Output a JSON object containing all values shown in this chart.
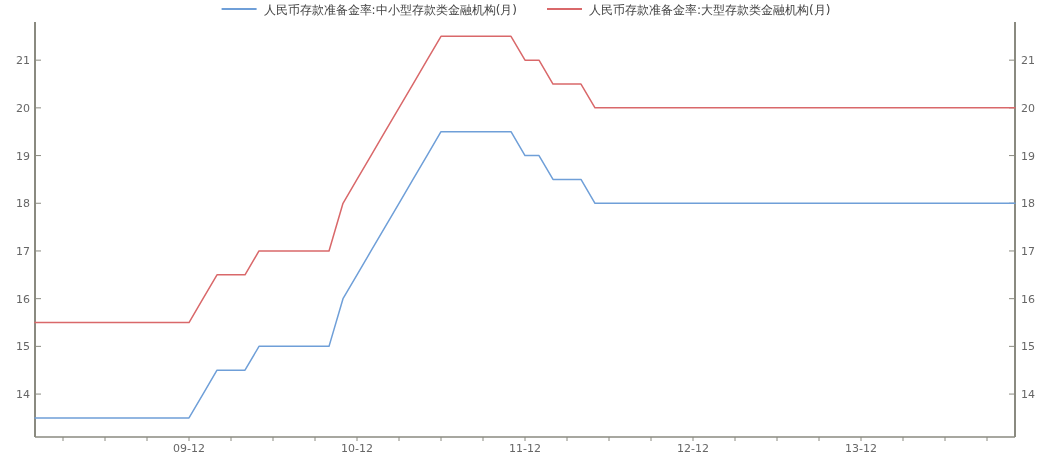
{
  "chart_data": {
    "type": "line",
    "x": [
      "2009-01",
      "2009-02",
      "2009-03",
      "2009-04",
      "2009-05",
      "2009-06",
      "2009-07",
      "2009-08",
      "2009-09",
      "2009-10",
      "2009-11",
      "2009-12",
      "2010-01",
      "2010-02",
      "2010-03",
      "2010-04",
      "2010-05",
      "2010-06",
      "2010-07",
      "2010-08",
      "2010-09",
      "2010-10",
      "2010-11",
      "2010-12",
      "2011-01",
      "2011-02",
      "2011-03",
      "2011-04",
      "2011-05",
      "2011-06",
      "2011-07",
      "2011-08",
      "2011-09",
      "2011-10",
      "2011-11",
      "2011-12",
      "2012-01",
      "2012-02",
      "2012-03",
      "2012-04",
      "2012-05",
      "2012-06",
      "2012-07",
      "2012-08",
      "2012-09",
      "2012-10",
      "2012-11",
      "2012-12",
      "2013-01",
      "2013-02",
      "2013-03",
      "2013-04",
      "2013-05",
      "2013-06",
      "2013-07",
      "2013-08",
      "2013-09",
      "2013-10",
      "2013-11",
      "2013-12",
      "2014-01",
      "2014-02",
      "2014-03",
      "2014-04",
      "2014-05",
      "2014-06",
      "2014-07",
      "2014-08",
      "2014-09",
      "2014-10",
      "2014-11"
    ],
    "series": [
      {
        "name": "人民币存款准备金率:中小型存款类金融机构(月)",
        "color": "#6f9fd8",
        "values": [
          13.5,
          13.5,
          13.5,
          13.5,
          13.5,
          13.5,
          13.5,
          13.5,
          13.5,
          13.5,
          13.5,
          13.5,
          14,
          14.5,
          14.5,
          14.5,
          15,
          15,
          15,
          15,
          15,
          15,
          16,
          16.5,
          17,
          17.5,
          18,
          18.5,
          19,
          19.5,
          19.5,
          19.5,
          19.5,
          19.5,
          19.5,
          19,
          19,
          18.5,
          18.5,
          18.5,
          18,
          18,
          18,
          18,
          18,
          18,
          18,
          18,
          18,
          18,
          18,
          18,
          18,
          18,
          18,
          18,
          18,
          18,
          18,
          18,
          18,
          18,
          18,
          18,
          18,
          18,
          18,
          18,
          18,
          18,
          18
        ]
      },
      {
        "name": "人民币存款准备金率:大型存款类金融机构(月)",
        "color": "#d9686a",
        "values": [
          15.5,
          15.5,
          15.5,
          15.5,
          15.5,
          15.5,
          15.5,
          15.5,
          15.5,
          15.5,
          15.5,
          15.5,
          16,
          16.5,
          16.5,
          16.5,
          17,
          17,
          17,
          17,
          17,
          17,
          18,
          18.5,
          19,
          19.5,
          20,
          20.5,
          21,
          21.5,
          21.5,
          21.5,
          21.5,
          21.5,
          21.5,
          21,
          21,
          20.5,
          20.5,
          20.5,
          20,
          20,
          20,
          20,
          20,
          20,
          20,
          20,
          20,
          20,
          20,
          20,
          20,
          20,
          20,
          20,
          20,
          20,
          20,
          20,
          20,
          20,
          20,
          20,
          20,
          20,
          20,
          20,
          20,
          20,
          20
        ]
      }
    ],
    "xlim": [
      "2009-01",
      "2014-11"
    ],
    "xticks": [
      {
        "value": "2009-03",
        "label": null
      },
      {
        "value": "2009-06",
        "label": null
      },
      {
        "value": "2009-09",
        "label": null
      },
      {
        "value": "2009-12",
        "label": "09-12"
      },
      {
        "value": "2010-03",
        "label": null
      },
      {
        "value": "2010-06",
        "label": null
      },
      {
        "value": "2010-09",
        "label": null
      },
      {
        "value": "2010-12",
        "label": "10-12"
      },
      {
        "value": "2011-03",
        "label": null
      },
      {
        "value": "2011-06",
        "label": null
      },
      {
        "value": "2011-09",
        "label": null
      },
      {
        "value": "2011-12",
        "label": "11-12"
      },
      {
        "value": "2012-03",
        "label": null
      },
      {
        "value": "2012-06",
        "label": null
      },
      {
        "value": "2012-09",
        "label": null
      },
      {
        "value": "2012-12",
        "label": "12-12"
      },
      {
        "value": "2013-03",
        "label": null
      },
      {
        "value": "2013-06",
        "label": null
      },
      {
        "value": "2013-09",
        "label": null
      },
      {
        "value": "2013-12",
        "label": "13-12"
      },
      {
        "value": "2014-03",
        "label": null
      },
      {
        "value": "2014-06",
        "label": null
      },
      {
        "value": "2014-09",
        "label": null
      }
    ],
    "ylim": [
      13.1,
      21.8
    ],
    "yticks": [
      14,
      15,
      16,
      17,
      18,
      19,
      20,
      21
    ],
    "y2lim": [
      13.1,
      21.8
    ],
    "y2ticks": [
      14,
      15,
      16,
      17,
      18,
      19,
      20,
      21
    ],
    "legend": "top",
    "grid": false,
    "marker": "none",
    "line_style": "solid"
  }
}
